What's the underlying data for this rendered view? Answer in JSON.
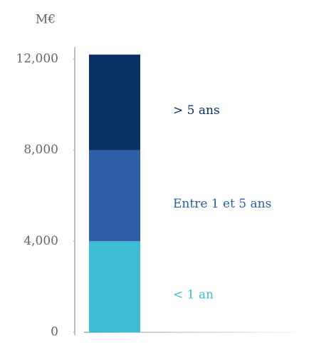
{
  "chart_data": {
    "type": "stacked_bar",
    "y_label": "M€",
    "categories": [
      null
    ],
    "series": [
      {
        "name": "< 1 an",
        "color": "#3dbcd6",
        "values": [
          4000
        ]
      },
      {
        "name": "Entre 1 et 5 ans",
        "color": "#2e5ea8",
        "values": [
          4000
        ]
      },
      {
        "name": "> 5 ans",
        "color": "#0a3161",
        "values": [
          4200
        ]
      }
    ],
    "ylim": [
      0,
      12500
    ],
    "yticks": [
      0,
      {
        "value": 4000,
        "label": "4,000"
      },
      {
        "value": 8000,
        "label": "8,000"
      },
      {
        "value": 12000,
        "label": "12,000"
      }
    ],
    "grid": false
  }
}
